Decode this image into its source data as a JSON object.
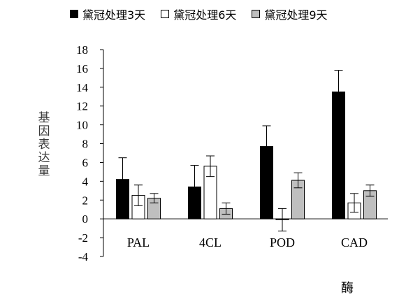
{
  "chart_data": {
    "type": "bar",
    "categories": [
      "PAL",
      "4CL",
      "POD",
      "CAD"
    ],
    "series": [
      {
        "name": "黛冠处理3天",
        "color": "#000000",
        "values": [
          4.2,
          3.4,
          7.7,
          13.5
        ],
        "errors": [
          2.3,
          2.3,
          2.2,
          2.3
        ]
      },
      {
        "name": "黛冠处理6天",
        "color": "#ffffff",
        "values": [
          2.5,
          5.6,
          -0.1,
          1.7
        ],
        "errors": [
          1.1,
          1.1,
          1.2,
          1.0
        ]
      },
      {
        "name": "黛冠处理9天",
        "color": "#bfbfbf",
        "values": [
          2.2,
          1.1,
          4.1,
          3.0
        ],
        "errors": [
          0.5,
          0.6,
          0.8,
          0.6
        ]
      }
    ],
    "ylabel": "基因表达量",
    "xlabel": "酶",
    "ylim": [
      -4,
      18
    ],
    "yticks": [
      -4,
      -2,
      0,
      2,
      4,
      6,
      8,
      10,
      12,
      14,
      16,
      18
    ],
    "legend_position": "top"
  }
}
